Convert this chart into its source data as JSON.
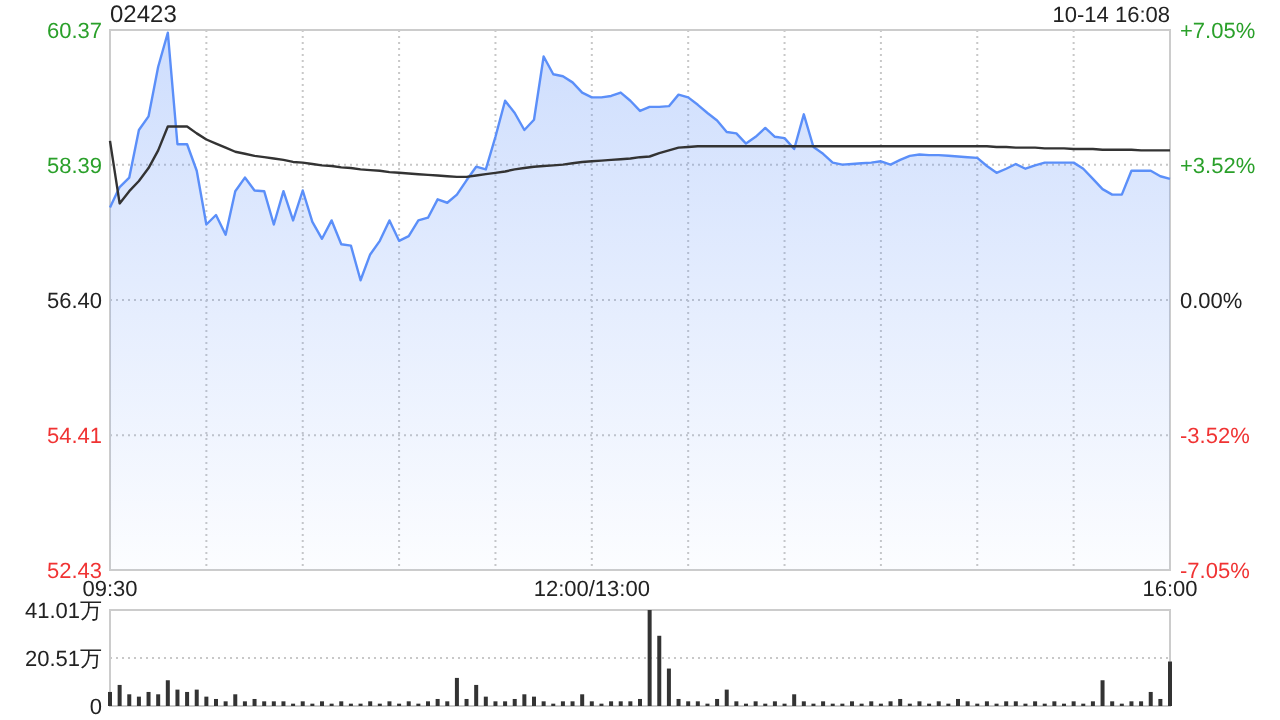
{
  "chart_data": [
    {
      "type": "area",
      "title": "02423",
      "annotations": [
        "10-14 16:08"
      ],
      "grid": true,
      "categories": [
        "09:30",
        null,
        null,
        null,
        null,
        null,
        null,
        null,
        null,
        null,
        null,
        null,
        null,
        null,
        null,
        null,
        null,
        null,
        null,
        null,
        null,
        null,
        null,
        null,
        null,
        null,
        null,
        null,
        null,
        null,
        null,
        null,
        null,
        null,
        null,
        null,
        null,
        null,
        null,
        null,
        null,
        null,
        null,
        null,
        null,
        null,
        null,
        null,
        null,
        null,
        "12:00/13:00",
        null,
        null,
        null,
        null,
        null,
        null,
        null,
        null,
        null,
        null,
        null,
        null,
        null,
        null,
        null,
        null,
        null,
        null,
        null,
        null,
        null,
        null,
        null,
        null,
        null,
        null,
        null,
        null,
        null,
        null,
        null,
        null,
        null,
        null,
        null,
        null,
        null,
        null,
        null,
        null,
        null,
        null,
        null,
        null,
        null,
        null,
        null,
        null,
        null,
        null,
        null,
        null,
        null,
        null,
        null,
        null,
        null,
        null,
        null,
        "16:00"
      ],
      "ylim": [
        52.43,
        60.37
      ],
      "yticks": [
        52.43,
        54.41,
        {
          "value": 56.4,
          "label": "56.40"
        },
        58.39,
        60.37
      ],
      "y2lim": [
        -7.05,
        7.05
      ],
      "y2ticks": [
        {
          "value": -7.05,
          "label": "-7.05%"
        },
        {
          "value": -3.52,
          "label": "-3.52%"
        },
        {
          "value": 0,
          "label": "0.00%"
        },
        {
          "value": 3.52,
          "label": "+3.52%"
        },
        {
          "value": 7.05,
          "label": "+7.05%"
        }
      ],
      "series": [
        {
          "color": "#5b8ff9",
          "values": [
            57.76,
            58.06,
            58.2,
            58.9,
            59.1,
            59.83,
            60.33,
            58.69,
            58.69,
            58.3,
            57.51,
            57.65,
            57.36,
            58.0,
            58.2,
            58.01,
            58.0,
            57.51,
            58.0,
            57.57,
            58.01,
            57.55,
            57.3,
            57.57,
            57.22,
            57.2,
            56.69,
            57.07,
            57.27,
            57.57,
            57.27,
            57.34,
            57.57,
            57.61,
            57.88,
            57.83,
            57.95,
            58.16,
            58.36,
            58.32,
            58.8,
            59.33,
            59.15,
            58.9,
            59.05,
            59.98,
            59.72,
            59.69,
            59.6,
            59.45,
            59.38,
            59.38,
            59.4,
            59.45,
            59.33,
            59.18,
            59.24,
            59.24,
            59.25,
            59.42,
            59.38,
            59.27,
            59.15,
            59.04,
            58.87,
            58.85,
            58.7,
            58.8,
            58.93,
            58.8,
            58.78,
            58.62,
            59.13,
            58.65,
            58.55,
            58.42,
            58.39,
            58.4,
            58.41,
            58.42,
            58.44,
            58.39,
            58.46,
            58.52,
            58.54,
            58.53,
            58.53,
            58.52,
            58.51,
            58.5,
            58.49,
            58.37,
            58.27,
            58.33,
            58.4,
            58.33,
            58.38,
            58.42,
            58.42,
            58.42,
            58.42,
            58.33,
            58.18,
            58.03,
            57.95,
            57.95,
            58.3,
            58.3,
            58.3,
            58.22,
            58.18
          ]
        },
        {
          "type": "line",
          "color": "#333333",
          "values": [
            58.74,
            57.82,
            58.0,
            58.15,
            58.34,
            58.6,
            58.95,
            58.95,
            58.95,
            58.85,
            58.76,
            58.7,
            58.64,
            58.58,
            58.55,
            58.52,
            58.5,
            58.48,
            58.46,
            58.43,
            58.42,
            58.4,
            58.38,
            58.37,
            58.35,
            58.34,
            58.32,
            58.31,
            58.3,
            58.28,
            58.27,
            58.26,
            58.25,
            58.24,
            58.23,
            58.22,
            58.21,
            58.21,
            58.23,
            58.25,
            58.27,
            58.29,
            58.32,
            58.34,
            58.36,
            58.37,
            58.38,
            58.39,
            58.41,
            58.43,
            58.44,
            58.45,
            58.46,
            58.47,
            58.48,
            58.5,
            58.51,
            58.56,
            58.6,
            58.64,
            58.65,
            58.66,
            58.66,
            58.66,
            58.66,
            58.66,
            58.66,
            58.66,
            58.66,
            58.66,
            58.66,
            58.66,
            58.66,
            58.66,
            58.66,
            58.66,
            58.66,
            58.66,
            58.66,
            58.66,
            58.66,
            58.66,
            58.66,
            58.66,
            58.66,
            58.66,
            58.66,
            58.66,
            58.66,
            58.66,
            58.66,
            58.66,
            58.65,
            58.65,
            58.64,
            58.64,
            58.64,
            58.63,
            58.63,
            58.63,
            58.62,
            58.62,
            58.62,
            58.61,
            58.61,
            58.61,
            58.61,
            58.6,
            58.6,
            58.6,
            58.6
          ]
        }
      ]
    },
    {
      "type": "bar",
      "grid": "y",
      "tick_labels": "y",
      "ylim": [
        0,
        41.01
      ],
      "yticks": [
        0,
        {
          "value": 20.51,
          "label": "20.51万"
        },
        {
          "value": 41.01,
          "label": "41.01万"
        }
      ],
      "categories": [
        null,
        null,
        null,
        null,
        null,
        null,
        null,
        null,
        null,
        null,
        null,
        null,
        null,
        null,
        null,
        null,
        null,
        null,
        null,
        null,
        null,
        null,
        null,
        null,
        null,
        null,
        null,
        null,
        null,
        null,
        null,
        null,
        null,
        null,
        null,
        null,
        null,
        null,
        null,
        null,
        null,
        null,
        null,
        null,
        null,
        null,
        null,
        null,
        null,
        null,
        null,
        null,
        null,
        null,
        null,
        null,
        null,
        null,
        null,
        null,
        null,
        null,
        null,
        null,
        null,
        null,
        null,
        null,
        null,
        null,
        null,
        null,
        null,
        null,
        null,
        null,
        null,
        null,
        null,
        null,
        null,
        null,
        null,
        null,
        null,
        null,
        null,
        null,
        null,
        null,
        null,
        null,
        null,
        null,
        null,
        null,
        null,
        null,
        null,
        null,
        null,
        null,
        null,
        null,
        null,
        null,
        null,
        null,
        null,
        null,
        null
      ],
      "series": [
        {
          "color": "#333333",
          "values": [
            6,
            9,
            5,
            4,
            6,
            5,
            11,
            7,
            6,
            7,
            4,
            3,
            2,
            5,
            2,
            3,
            2,
            2,
            2,
            1,
            2,
            1,
            2,
            1,
            2,
            1,
            1,
            2,
            1,
            2,
            1,
            2,
            1,
            2,
            3,
            2,
            12,
            3,
            9,
            4,
            2,
            2,
            3,
            5,
            4,
            2,
            1,
            2,
            2,
            5,
            2,
            1,
            2,
            2,
            2,
            3,
            41,
            30,
            16,
            3,
            2,
            2,
            1,
            3,
            7,
            2,
            1,
            2,
            1,
            2,
            1,
            5,
            2,
            1,
            2,
            1,
            1,
            2,
            1,
            2,
            1,
            2,
            3,
            1,
            2,
            1,
            2,
            1,
            3,
            2,
            1,
            2,
            1,
            2,
            2,
            1,
            2,
            1,
            2,
            1,
            2,
            1,
            2,
            11,
            2,
            1,
            2,
            2,
            6,
            3,
            19
          ]
        }
      ]
    }
  ]
}
